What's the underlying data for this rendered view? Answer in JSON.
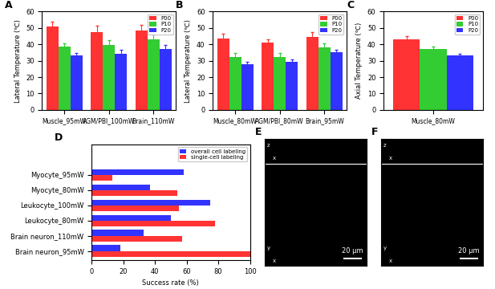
{
  "chart_data": [
    {
      "panel_label": "A",
      "type": "bar",
      "ylabel": "Lateral Temperature (℃)",
      "categories": [
        "Muscle_95mW",
        "AGM/PBI_100mW",
        "Brain_110mW"
      ],
      "series": [
        {
          "name": "P00",
          "color": "#ff3333",
          "values": [
            51,
            47.5,
            48.5
          ],
          "errors": [
            3,
            4,
            3.5
          ]
        },
        {
          "name": "P10",
          "color": "#33cc33",
          "values": [
            38.5,
            39.5,
            43
          ],
          "errors": [
            2,
            3,
            3
          ]
        },
        {
          "name": "P20",
          "color": "#3333ff",
          "values": [
            33,
            34,
            37
          ],
          "errors": [
            1.5,
            2.5,
            2.5
          ]
        }
      ],
      "ylim": [
        0,
        60
      ],
      "yticks": [
        0,
        10,
        20,
        30,
        40,
        50,
        60
      ],
      "legend": "upper right"
    },
    {
      "panel_label": "B",
      "type": "bar",
      "ylabel": "Lateral Temperature (℃)",
      "categories": [
        "Muscle_80mW",
        "AGM/PBI_80mW",
        "Brain_95mW"
      ],
      "series": [
        {
          "name": "P00",
          "color": "#ff3333",
          "values": [
            43.5,
            41,
            44.5
          ],
          "errors": [
            3,
            2,
            3
          ]
        },
        {
          "name": "P10",
          "color": "#33cc33",
          "values": [
            32.5,
            32.5,
            38
          ],
          "errors": [
            2,
            2,
            2.5
          ]
        },
        {
          "name": "P20",
          "color": "#3333ff",
          "values": [
            28,
            29.5,
            35
          ],
          "errors": [
            1.5,
            1.5,
            1.5
          ]
        }
      ],
      "ylim": [
        0,
        60
      ],
      "yticks": [
        0,
        10,
        20,
        30,
        40,
        50,
        60
      ],
      "legend": "upper right"
    },
    {
      "panel_label": "C",
      "type": "bar",
      "ylabel": "Axial Temperature (℃)",
      "categories": [
        "Muscle_80mW"
      ],
      "series": [
        {
          "name": "P00",
          "color": "#ff3333",
          "values": [
            43
          ],
          "errors": [
            2
          ]
        },
        {
          "name": "P10",
          "color": "#33cc33",
          "values": [
            37
          ],
          "errors": [
            1.5
          ]
        },
        {
          "name": "P20",
          "color": "#3333ff",
          "values": [
            33
          ],
          "errors": [
            1
          ]
        }
      ],
      "ylim": [
        0,
        60
      ],
      "yticks": [
        0,
        10,
        20,
        30,
        40,
        50,
        60
      ],
      "legend": "upper right"
    },
    {
      "panel_label": "D",
      "type": "bar",
      "orientation": "horizontal",
      "xlabel": "Success rate (%)",
      "categories": [
        "Brain neuron_95mW",
        "Brain neuron_110mW",
        "Leukocyte_80mW",
        "Leukocyte_100mW",
        "Myocyte_80mW",
        "Myocyte_95mW"
      ],
      "series": [
        {
          "name": "overall cell labeling",
          "color": "#3333ff",
          "values": [
            18,
            33,
            50,
            75,
            37,
            58
          ]
        },
        {
          "name": "single-cell labeling",
          "color": "#ff3333",
          "values": [
            100,
            57,
            78,
            55,
            54,
            13
          ]
        }
      ],
      "xlim": [
        0,
        100
      ],
      "xticks": [
        0,
        20,
        40,
        60,
        80,
        100
      ],
      "legend": "upper right"
    },
    {
      "panel_label": "E",
      "type": "image",
      "scale_bar": "20 μm",
      "axis_labels": [
        "z",
        "x",
        "y",
        "x"
      ]
    },
    {
      "panel_label": "F",
      "type": "image",
      "scale_bar": "20 μm",
      "axis_labels": [
        "z",
        "x",
        "y",
        "x"
      ]
    }
  ]
}
